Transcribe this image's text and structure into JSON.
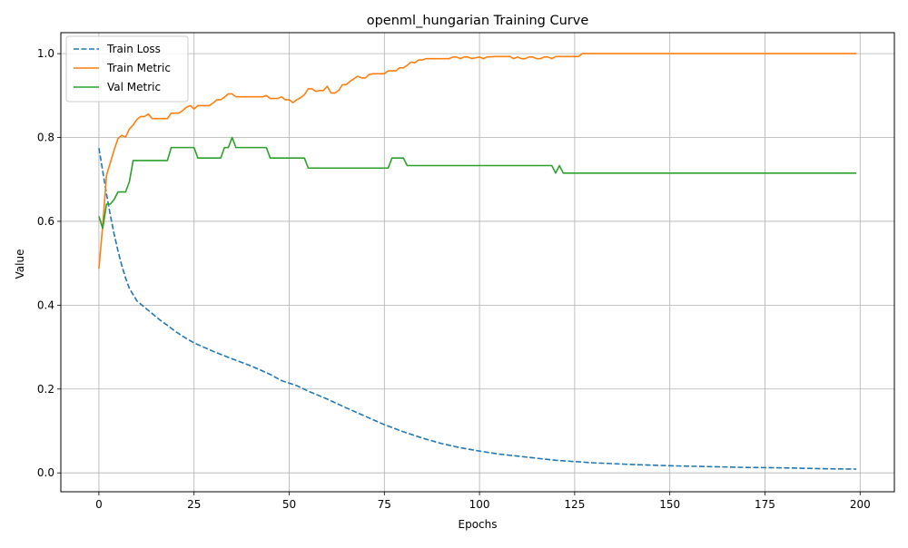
{
  "chart_data": {
    "type": "line",
    "title": "openml_hungarian Training Curve",
    "xlabel": "Epochs",
    "ylabel": "Value",
    "xlim": [
      -10,
      209
    ],
    "ylim": [
      -0.045,
      1.05
    ],
    "x_ticks": [
      0,
      25,
      50,
      75,
      100,
      125,
      150,
      175,
      200
    ],
    "x_tick_labels": [
      "0",
      "25",
      "50",
      "75",
      "100",
      "125",
      "150",
      "175",
      "200"
    ],
    "y_ticks": [
      0.0,
      0.2,
      0.4,
      0.6,
      0.8,
      1.0
    ],
    "y_tick_labels": [
      "0.0",
      "0.2",
      "0.4",
      "0.6",
      "0.8",
      "1.0"
    ],
    "grid": true,
    "legend_position": "top-left",
    "series": [
      {
        "name": "Train Loss",
        "color": "#1f77b4",
        "dash": "dashed",
        "points": [
          [
            0,
            0.775
          ],
          [
            1,
            0.72
          ],
          [
            2,
            0.665
          ],
          [
            3,
            0.615
          ],
          [
            4,
            0.57
          ],
          [
            5,
            0.53
          ],
          [
            6,
            0.495
          ],
          [
            7,
            0.465
          ],
          [
            8,
            0.44
          ],
          [
            9,
            0.425
          ],
          [
            10,
            0.41
          ],
          [
            12,
            0.395
          ],
          [
            14,
            0.38
          ],
          [
            16,
            0.365
          ],
          [
            18,
            0.352
          ],
          [
            20,
            0.338
          ],
          [
            22,
            0.326
          ],
          [
            25,
            0.31
          ],
          [
            30,
            0.29
          ],
          [
            35,
            0.272
          ],
          [
            40,
            0.255
          ],
          [
            45,
            0.235
          ],
          [
            48,
            0.22
          ],
          [
            52,
            0.208
          ],
          [
            55,
            0.195
          ],
          [
            60,
            0.176
          ],
          [
            65,
            0.155
          ],
          [
            70,
            0.135
          ],
          [
            75,
            0.115
          ],
          [
            80,
            0.098
          ],
          [
            85,
            0.083
          ],
          [
            90,
            0.07
          ],
          [
            95,
            0.06
          ],
          [
            100,
            0.052
          ],
          [
            105,
            0.045
          ],
          [
            110,
            0.04
          ],
          [
            115,
            0.035
          ],
          [
            120,
            0.03
          ],
          [
            125,
            0.027
          ],
          [
            130,
            0.024
          ],
          [
            140,
            0.02
          ],
          [
            150,
            0.017
          ],
          [
            160,
            0.015
          ],
          [
            170,
            0.013
          ],
          [
            180,
            0.012
          ],
          [
            190,
            0.01
          ],
          [
            199,
            0.009
          ]
        ]
      },
      {
        "name": "Train Metric",
        "color": "#ff7f0e",
        "dash": "solid",
        "points": [
          [
            0,
            0.487
          ],
          [
            1,
            0.59
          ],
          [
            2,
            0.71
          ],
          [
            3,
            0.74
          ],
          [
            4,
            0.77
          ],
          [
            5,
            0.797
          ],
          [
            6,
            0.805
          ],
          [
            7,
            0.801
          ],
          [
            8,
            0.82
          ],
          [
            9,
            0.83
          ],
          [
            10,
            0.843
          ],
          [
            11,
            0.85
          ],
          [
            12,
            0.85
          ],
          [
            13,
            0.856
          ],
          [
            14,
            0.845
          ],
          [
            15,
            0.845
          ],
          [
            16,
            0.845
          ],
          [
            17,
            0.845
          ],
          [
            18,
            0.845
          ],
          [
            19,
            0.858
          ],
          [
            20,
            0.858
          ],
          [
            21,
            0.858
          ],
          [
            22,
            0.864
          ],
          [
            23,
            0.872
          ],
          [
            24,
            0.876
          ],
          [
            25,
            0.868
          ],
          [
            26,
            0.876
          ],
          [
            27,
            0.876
          ],
          [
            28,
            0.876
          ],
          [
            29,
            0.876
          ],
          [
            30,
            0.882
          ],
          [
            31,
            0.89
          ],
          [
            32,
            0.89
          ],
          [
            33,
            0.896
          ],
          [
            34,
            0.904
          ],
          [
            35,
            0.904
          ],
          [
            36,
            0.897
          ],
          [
            37,
            0.897
          ],
          [
            38,
            0.897
          ],
          [
            39,
            0.897
          ],
          [
            40,
            0.897
          ],
          [
            41,
            0.897
          ],
          [
            42,
            0.897
          ],
          [
            43,
            0.897
          ],
          [
            44,
            0.9
          ],
          [
            45,
            0.893
          ],
          [
            46,
            0.893
          ],
          [
            47,
            0.893
          ],
          [
            48,
            0.897
          ],
          [
            49,
            0.89
          ],
          [
            50,
            0.89
          ],
          [
            51,
            0.883
          ],
          [
            52,
            0.89
          ],
          [
            53,
            0.895
          ],
          [
            54,
            0.902
          ],
          [
            55,
            0.916
          ],
          [
            56,
            0.916
          ],
          [
            57,
            0.91
          ],
          [
            58,
            0.912
          ],
          [
            59,
            0.912
          ],
          [
            60,
            0.922
          ],
          [
            61,
            0.906
          ],
          [
            62,
            0.906
          ],
          [
            63,
            0.912
          ],
          [
            64,
            0.926
          ],
          [
            65,
            0.926
          ],
          [
            66,
            0.934
          ],
          [
            67,
            0.94
          ],
          [
            68,
            0.946
          ],
          [
            69,
            0.942
          ],
          [
            70,
            0.942
          ],
          [
            71,
            0.95
          ],
          [
            72,
            0.952
          ],
          [
            73,
            0.952
          ],
          [
            74,
            0.952
          ],
          [
            75,
            0.952
          ],
          [
            76,
            0.959
          ],
          [
            77,
            0.959
          ],
          [
            78,
            0.959
          ],
          [
            79,
            0.966
          ],
          [
            80,
            0.966
          ],
          [
            81,
            0.972
          ],
          [
            82,
            0.98
          ],
          [
            83,
            0.978
          ],
          [
            84,
            0.985
          ],
          [
            85,
            0.985
          ],
          [
            86,
            0.988
          ],
          [
            88,
            0.988
          ],
          [
            90,
            0.988
          ],
          [
            92,
            0.988
          ],
          [
            93,
            0.992
          ],
          [
            94,
            0.992
          ],
          [
            95,
            0.988
          ],
          [
            96,
            0.992
          ],
          [
            97,
            0.992
          ],
          [
            98,
            0.988
          ],
          [
            100,
            0.992
          ],
          [
            101,
            0.988
          ],
          [
            102,
            0.992
          ],
          [
            104,
            0.993
          ],
          [
            106,
            0.993
          ],
          [
            108,
            0.993
          ],
          [
            109,
            0.988
          ],
          [
            110,
            0.992
          ],
          [
            111,
            0.988
          ],
          [
            112,
            0.988
          ],
          [
            113,
            0.992
          ],
          [
            114,
            0.992
          ],
          [
            115,
            0.988
          ],
          [
            116,
            0.988
          ],
          [
            117,
            0.992
          ],
          [
            118,
            0.992
          ],
          [
            119,
            0.988
          ],
          [
            120,
            0.993
          ],
          [
            122,
            0.993
          ],
          [
            124,
            0.993
          ],
          [
            126,
            0.993
          ],
          [
            127,
            1.0
          ],
          [
            130,
            1.0
          ],
          [
            140,
            1.0
          ],
          [
            150,
            1.0
          ],
          [
            160,
            1.0
          ],
          [
            170,
            1.0
          ],
          [
            180,
            1.0
          ],
          [
            190,
            1.0
          ],
          [
            199,
            1.0
          ]
        ]
      },
      {
        "name": "Val Metric",
        "color": "#2ca02c",
        "dash": "solid",
        "points": [
          [
            0,
            0.612
          ],
          [
            1,
            0.583
          ],
          [
            2,
            0.641
          ],
          [
            3,
            0.641
          ],
          [
            4,
            0.652
          ],
          [
            5,
            0.67
          ],
          [
            6,
            0.67
          ],
          [
            7,
            0.67
          ],
          [
            8,
            0.694
          ],
          [
            9,
            0.745
          ],
          [
            10,
            0.745
          ],
          [
            11,
            0.745
          ],
          [
            12,
            0.745
          ],
          [
            13,
            0.745
          ],
          [
            14,
            0.745
          ],
          [
            15,
            0.745
          ],
          [
            16,
            0.745
          ],
          [
            17,
            0.745
          ],
          [
            18,
            0.745
          ],
          [
            19,
            0.776
          ],
          [
            20,
            0.776
          ],
          [
            21,
            0.776
          ],
          [
            22,
            0.776
          ],
          [
            23,
            0.776
          ],
          [
            24,
            0.776
          ],
          [
            25,
            0.776
          ],
          [
            26,
            0.751
          ],
          [
            27,
            0.751
          ],
          [
            28,
            0.751
          ],
          [
            29,
            0.751
          ],
          [
            30,
            0.751
          ],
          [
            31,
            0.751
          ],
          [
            32,
            0.751
          ],
          [
            33,
            0.776
          ],
          [
            34,
            0.776
          ],
          [
            35,
            0.8
          ],
          [
            36,
            0.776
          ],
          [
            37,
            0.776
          ],
          [
            38,
            0.776
          ],
          [
            39,
            0.776
          ],
          [
            40,
            0.776
          ],
          [
            41,
            0.776
          ],
          [
            42,
            0.776
          ],
          [
            43,
            0.776
          ],
          [
            44,
            0.776
          ],
          [
            45,
            0.751
          ],
          [
            46,
            0.751
          ],
          [
            50,
            0.751
          ],
          [
            54,
            0.751
          ],
          [
            55,
            0.727
          ],
          [
            56,
            0.727
          ],
          [
            60,
            0.727
          ],
          [
            65,
            0.727
          ],
          [
            70,
            0.727
          ],
          [
            75,
            0.727
          ],
          [
            76,
            0.727
          ],
          [
            77,
            0.751
          ],
          [
            78,
            0.751
          ],
          [
            79,
            0.751
          ],
          [
            80,
            0.751
          ],
          [
            81,
            0.733
          ],
          [
            82,
            0.733
          ],
          [
            85,
            0.733
          ],
          [
            90,
            0.733
          ],
          [
            95,
            0.733
          ],
          [
            100,
            0.733
          ],
          [
            105,
            0.733
          ],
          [
            110,
            0.733
          ],
          [
            115,
            0.733
          ],
          [
            119,
            0.733
          ],
          [
            120,
            0.715
          ],
          [
            121,
            0.733
          ],
          [
            122,
            0.715
          ],
          [
            125,
            0.715
          ],
          [
            130,
            0.715
          ],
          [
            140,
            0.715
          ],
          [
            150,
            0.715
          ],
          [
            160,
            0.715
          ],
          [
            170,
            0.715
          ],
          [
            180,
            0.715
          ],
          [
            190,
            0.715
          ],
          [
            199,
            0.715
          ]
        ]
      }
    ]
  }
}
